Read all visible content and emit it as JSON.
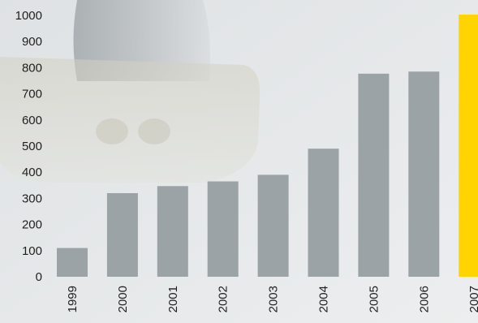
{
  "chart_data": {
    "type": "bar",
    "title": "",
    "xlabel": "",
    "ylabel": "",
    "categories": [
      "1999",
      "2000",
      "2001",
      "2002",
      "2003",
      "2004",
      "2005",
      "2006",
      "2007"
    ],
    "values": [
      110,
      320,
      347,
      365,
      390,
      490,
      777,
      785,
      1003
    ],
    "ylim": [
      0,
      1000
    ],
    "yticks": [
      "0",
      "100",
      "200",
      "300",
      "400",
      "500",
      "600",
      "700",
      "800",
      "900",
      "1000"
    ],
    "grid": false,
    "legend": "none",
    "colors": {
      "bar": "#9ca3a6",
      "highlight_bar": "#ffd400",
      "highlight_category": "2007",
      "background": "#e6e8ea"
    }
  }
}
